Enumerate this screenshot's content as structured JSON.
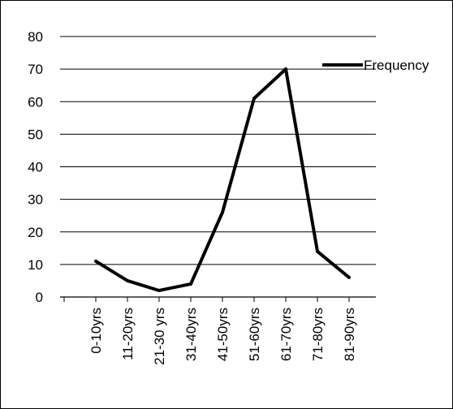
{
  "chart_data": {
    "type": "line",
    "categories": [
      "0-10yrs",
      "11-20yrs",
      "21-30 yrs",
      "31-40yrs",
      "41-50yrs",
      "51-60yrs",
      "61-70yrs",
      "71-80yrs",
      "81-90yrs"
    ],
    "series": [
      {
        "name": "Frequency",
        "values": [
          11,
          5,
          2,
          4,
          26,
          61,
          70,
          14,
          6
        ]
      }
    ],
    "y_ticks": [
      "0",
      "10",
      "20",
      "30",
      "40",
      "50",
      "60",
      "70",
      "80"
    ],
    "ylim": [
      0,
      80
    ],
    "grid": true,
    "legend": "right",
    "colors": {
      "line": "#000000",
      "grid": "#000000",
      "axis": "#000000"
    }
  }
}
